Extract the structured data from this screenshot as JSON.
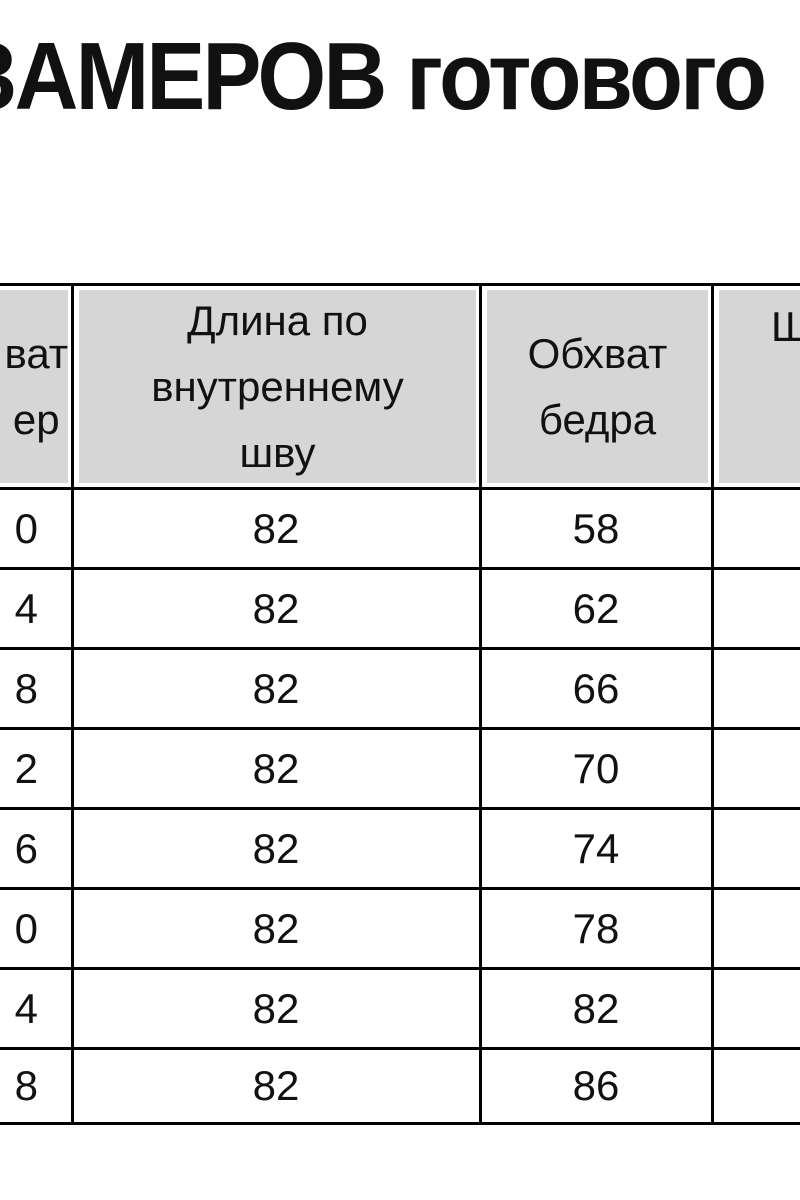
{
  "title": "ЗАМЕРОВ готового",
  "table": {
    "headers": [
      [
        "ват",
        "ер"
      ],
      [
        "Длина по",
        "внутреннему",
        "шву"
      ],
      [
        "Обхват",
        "бедра"
      ],
      [
        "Ш"
      ]
    ],
    "rows": [
      [
        "0",
        "82",
        "58",
        ""
      ],
      [
        "4",
        "82",
        "62",
        ""
      ],
      [
        "8",
        "82",
        "66",
        ""
      ],
      [
        "2",
        "82",
        "70",
        ""
      ],
      [
        "6",
        "82",
        "74",
        ""
      ],
      [
        "0",
        "82",
        "78",
        ""
      ],
      [
        "4",
        "82",
        "82",
        ""
      ],
      [
        "8",
        "82",
        "86",
        ""
      ]
    ]
  },
  "colors": {
    "header_bg": "#d6d6d6",
    "border": "#000000"
  }
}
